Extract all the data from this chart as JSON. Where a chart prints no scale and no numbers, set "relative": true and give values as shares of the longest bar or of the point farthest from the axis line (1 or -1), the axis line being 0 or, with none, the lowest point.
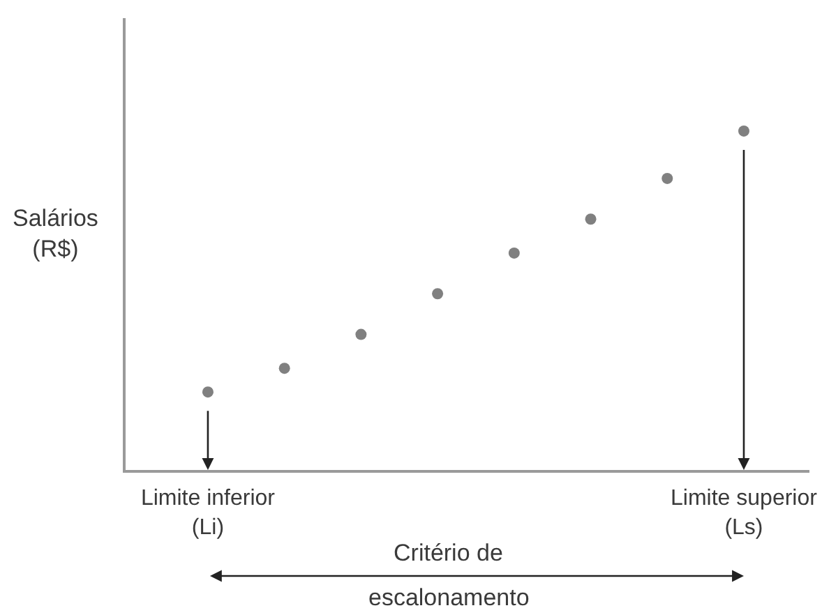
{
  "chart_data": {
    "type": "scatter",
    "relative": true,
    "ylabel": "Salários\n(R$)",
    "xlabel": "Critério de\nescalonamento",
    "categories": [
      "Limite inferior\n(Li)",
      null,
      null,
      null,
      null,
      null,
      null,
      "Limite superior\n(Ls)"
    ],
    "values": [
      0.23,
      0.3,
      0.4,
      0.52,
      0.64,
      0.74,
      0.86,
      1
    ],
    "color": "#808080",
    "marker": "circle"
  }
}
